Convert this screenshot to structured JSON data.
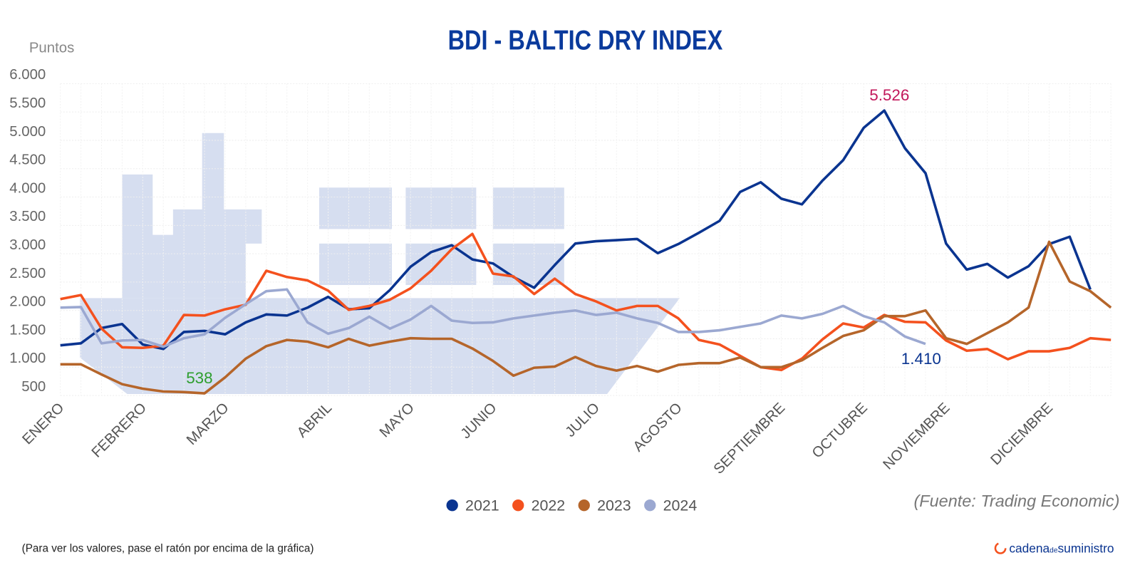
{
  "chart_data": {
    "type": "line",
    "title": "BDI - BALTIC DRY INDEX",
    "y_label": "Puntos",
    "source": "(Fuente: Trading Economic)",
    "note": "(Para ver los valores, pase el ratón por encima de la gráfica)",
    "brand": [
      "cadena",
      "de",
      "suministro"
    ],
    "grid": true,
    "legend": "bottom",
    "ylim": [
      500,
      6000
    ],
    "yticks": [
      {
        "value": 6000,
        "label": "6.000"
      },
      {
        "value": 5500,
        "label": "5.500"
      },
      {
        "value": 5000,
        "label": "5.000"
      },
      {
        "value": 4500,
        "label": "4.500"
      },
      {
        "value": 4000,
        "label": "4.000"
      },
      {
        "value": 3500,
        "label": "3.500"
      },
      {
        "value": 3000,
        "label": "3.000"
      },
      {
        "value": 2500,
        "label": "2.500"
      },
      {
        "value": 2000,
        "label": "2.000"
      },
      {
        "value": 1500,
        "label": "1.500"
      },
      {
        "value": 1000,
        "label": "1.000"
      },
      500
    ],
    "categories": [
      "ENERO",
      null,
      null,
      null,
      "FEBRERO",
      null,
      null,
      null,
      "MARZO",
      null,
      null,
      null,
      null,
      "ABRIL",
      null,
      null,
      null,
      "MAYO",
      null,
      null,
      null,
      "JUNIO",
      null,
      null,
      null,
      null,
      "JULIO",
      null,
      null,
      null,
      "AGOSTO",
      null,
      null,
      null,
      null,
      "SEPTIEMBRE",
      null,
      null,
      null,
      "OCTUBRE",
      null,
      null,
      null,
      "NOVIEMBRE",
      null,
      null,
      null,
      null,
      "DICIEMBRE",
      null,
      null,
      null
    ],
    "series": [
      {
        "name": "2021",
        "color": "#0a3490",
        "label_color": "#c2185b",
        "values": [
          1385,
          1420,
          1690,
          1760,
          1400,
          1320,
          1620,
          1640,
          1580,
          1790,
          1930,
          1910,
          2050,
          2240,
          2020,
          2040,
          2360,
          2770,
          3030,
          3150,
          2900,
          2830,
          2590,
          2400,
          2800,
          3180,
          3220,
          3240,
          3260,
          3010,
          3170,
          3370,
          3580,
          4090,
          4260,
          3970,
          3870,
          4290,
          4650,
          5220,
          5526,
          4860,
          4420,
          3180,
          2720,
          2820,
          2580,
          2780,
          3170,
          3300,
          2370,
          null
        ],
        "value_labels": [
          null,
          null,
          null,
          null,
          null,
          null,
          null,
          null,
          null,
          null,
          null,
          null,
          null,
          null,
          null,
          null,
          null,
          null,
          null,
          null,
          null,
          null,
          null,
          null,
          null,
          null,
          null,
          null,
          null,
          null,
          null,
          null,
          null,
          null,
          null,
          null,
          null,
          null,
          null,
          null,
          "5.526",
          null,
          null,
          null,
          null,
          null,
          null,
          null,
          null,
          null,
          null,
          null
        ]
      },
      {
        "name": "2022",
        "color": "#f4511e",
        "values": [
          2200,
          2270,
          1680,
          1350,
          1340,
          1380,
          1920,
          1910,
          2020,
          2100,
          2700,
          2590,
          2530,
          2350,
          2010,
          2080,
          2190,
          2390,
          2700,
          3080,
          3350,
          2650,
          2600,
          2290,
          2560,
          2290,
          2160,
          2000,
          2080,
          2080,
          1860,
          1480,
          1400,
          1200,
          1000,
          950,
          1150,
          1490,
          1770,
          1700,
          1920,
          1800,
          1790,
          1470,
          1290,
          1320,
          1140,
          1280,
          1280,
          1340,
          1510,
          1480
        ]
      },
      {
        "name": "2023",
        "color": "#b5652a",
        "label_color": "#2e9e2e",
        "values": [
          1050,
          1050,
          870,
          700,
          620,
          570,
          560,
          538,
          820,
          1150,
          1370,
          1480,
          1450,
          1350,
          1500,
          1380,
          1450,
          1510,
          1500,
          1500,
          1330,
          1110,
          850,
          990,
          1010,
          1180,
          1020,
          940,
          1020,
          920,
          1040,
          1070,
          1070,
          1170,
          1000,
          1000,
          1120,
          1340,
          1550,
          1650,
          1900,
          1900,
          2000,
          1510,
          1410,
          1600,
          1790,
          2050,
          3210,
          2510,
          2340,
          2050
        ],
        "value_labels": [
          null,
          null,
          null,
          null,
          null,
          null,
          null,
          "538",
          null,
          null,
          null,
          null,
          null,
          null,
          null,
          null,
          null,
          null,
          null,
          null,
          null,
          null,
          null,
          null,
          null,
          null,
          null,
          null,
          null,
          null,
          null,
          null,
          null,
          null,
          null,
          null,
          null,
          null,
          null,
          null,
          null,
          null,
          null,
          null,
          null,
          null,
          null,
          null,
          null,
          null,
          null,
          null
        ]
      },
      {
        "name": "2024",
        "color": "#9ba8d1",
        "label_color": "#0a3490",
        "values": [
          2050,
          2060,
          1420,
          1470,
          1480,
          1360,
          1510,
          1580,
          1870,
          2110,
          2340,
          2370,
          1790,
          1590,
          1690,
          1890,
          1680,
          1840,
          2080,
          1820,
          1780,
          1790,
          1860,
          1910,
          1960,
          2000,
          1920,
          1960,
          1860,
          1780,
          1620,
          1620,
          1650,
          1710,
          1770,
          1910,
          1860,
          1940,
          2080,
          1900,
          1790,
          1540,
          1410,
          null,
          null,
          null,
          null,
          null,
          null,
          null,
          null,
          null
        ],
        "value_labels": [
          null,
          null,
          null,
          null,
          null,
          null,
          null,
          null,
          null,
          null,
          null,
          null,
          null,
          null,
          null,
          null,
          null,
          null,
          null,
          null,
          null,
          null,
          null,
          null,
          null,
          null,
          null,
          null,
          null,
          null,
          null,
          null,
          null,
          null,
          null,
          null,
          null,
          null,
          null,
          null,
          null,
          null,
          "1.410",
          null,
          null,
          null,
          null,
          null,
          null,
          null,
          null,
          null
        ]
      }
    ]
  }
}
